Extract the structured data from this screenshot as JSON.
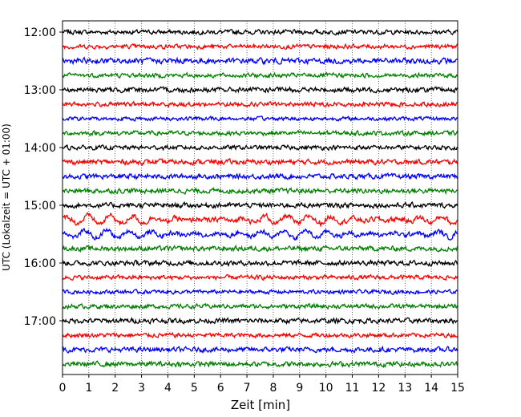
{
  "chart_data": {
    "type": "line",
    "title": "",
    "xlabel": "Zeit  [min]",
    "ylabel": "UTC (Lokalzeit = UTC + 01:00)",
    "xlim": [
      0,
      15
    ],
    "x_ticks": [
      "0",
      "1",
      "2",
      "3",
      "4",
      "5",
      "6",
      "7",
      "8",
      "9",
      "10",
      "11",
      "12",
      "13",
      "14",
      "15"
    ],
    "y_ticks": [
      "12:00",
      "13:00",
      "14:00",
      "15:00",
      "16:00",
      "17:00"
    ],
    "grid": "vertical dotted",
    "trace_colors": [
      "#000000",
      "#ff0000",
      "#0000ff",
      "#008000"
    ],
    "rows": [
      {
        "start": "12:00",
        "color": "#000000",
        "amplitude": 0.22
      },
      {
        "start": "12:15",
        "color": "#ff0000",
        "amplitude": 0.22
      },
      {
        "start": "12:30",
        "color": "#0000ff",
        "amplitude": 0.28
      },
      {
        "start": "12:45",
        "color": "#008000",
        "amplitude": 0.22
      },
      {
        "start": "13:00",
        "color": "#000000",
        "amplitude": 0.25
      },
      {
        "start": "13:15",
        "color": "#ff0000",
        "amplitude": 0.22
      },
      {
        "start": "13:30",
        "color": "#0000ff",
        "amplitude": 0.2
      },
      {
        "start": "13:45",
        "color": "#008000",
        "amplitude": 0.22
      },
      {
        "start": "14:00",
        "color": "#000000",
        "amplitude": 0.22
      },
      {
        "start": "14:15",
        "color": "#ff0000",
        "amplitude": 0.25
      },
      {
        "start": "14:30",
        "color": "#0000ff",
        "amplitude": 0.25
      },
      {
        "start": "14:45",
        "color": "#008000",
        "amplitude": 0.25
      },
      {
        "start": "15:00",
        "color": "#000000",
        "amplitude": 0.25
      },
      {
        "start": "15:15",
        "color": "#ff0000",
        "amplitude": 0.45
      },
      {
        "start": "15:30",
        "color": "#0000ff",
        "amplitude": 0.4
      },
      {
        "start": "15:45",
        "color": "#008000",
        "amplitude": 0.25
      },
      {
        "start": "16:00",
        "color": "#000000",
        "amplitude": 0.25
      },
      {
        "start": "16:15",
        "color": "#ff0000",
        "amplitude": 0.22
      },
      {
        "start": "16:30",
        "color": "#0000ff",
        "amplitude": 0.2
      },
      {
        "start": "16:45",
        "color": "#008000",
        "amplitude": 0.22
      },
      {
        "start": "17:00",
        "color": "#000000",
        "amplitude": 0.25
      },
      {
        "start": "17:15",
        "color": "#ff0000",
        "amplitude": 0.22
      },
      {
        "start": "17:30",
        "color": "#0000ff",
        "amplitude": 0.25
      },
      {
        "start": "17:45",
        "color": "#008000",
        "amplitude": 0.25
      }
    ]
  }
}
